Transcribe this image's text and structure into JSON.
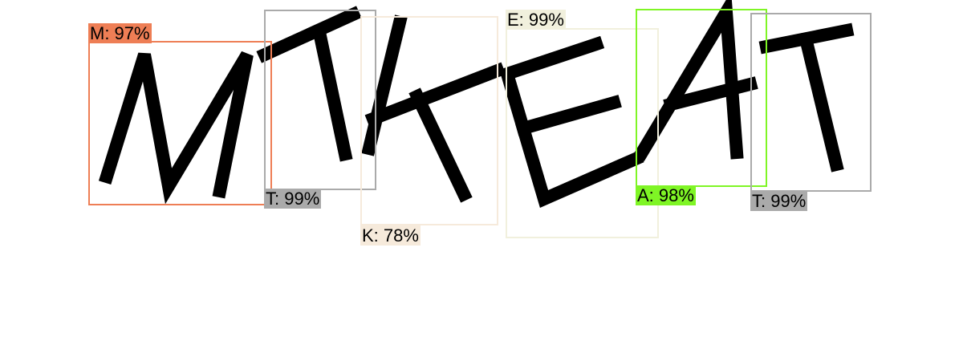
{
  "detections": [
    {
      "letter": "M",
      "label": "M: 97%",
      "color": "#ee7e55"
    },
    {
      "letter": "T",
      "label": "T: 99%",
      "color": "#aaaaaa"
    },
    {
      "letter": "K",
      "label": "K: 78%",
      "color": "#f6eadb"
    },
    {
      "letter": "E",
      "label": "E: 99%",
      "color": "#f1f0dd"
    },
    {
      "letter": "A",
      "label": "A: 98%",
      "color": "#7ff525"
    },
    {
      "letter": "T",
      "label": "T: 99%",
      "color": "#aaaaaa"
    }
  ]
}
